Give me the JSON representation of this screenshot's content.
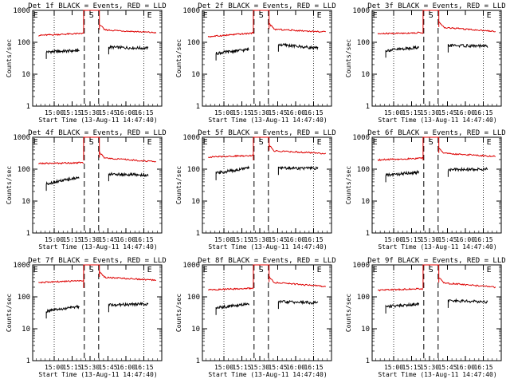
{
  "chart_data": [
    {
      "type": "line",
      "title": "Det 1f BLACK = Events, RED = LLD",
      "ylabel": "Counts/sec",
      "xlabel": "Start Time (13-Aug-11 14:47:40)",
      "xticks": [
        "15:00",
        "15:15",
        "15:30",
        "15:45",
        "16:00",
        "16:15"
      ],
      "yticks": [
        "1",
        "10",
        "100",
        "1000"
      ],
      "ylim": [
        1,
        1000
      ],
      "yscale": "log",
      "markers": [
        "E",
        "S",
        "E"
      ],
      "series": [
        {
          "name": "BLACK = Events",
          "color": "#000000",
          "segments": [
            {
              "x": [
                14.89,
                15.35
              ],
              "y": [
                50,
                55
              ]
            },
            {
              "x": [
                15.76,
                16.31
              ],
              "y": [
                70,
                65
              ]
            }
          ]
        },
        {
          "name": "RED = LLD",
          "color": "#dd0000",
          "segments": [
            {
              "x": [
                14.78,
                15.41
              ],
              "y": [
                165,
                190
              ]
            },
            {
              "x": [
                15.63,
                16.42
              ],
              "y": [
                250,
                200
              ]
            }
          ]
        }
      ]
    },
    {
      "type": "line",
      "title": "Det 2f BLACK = Events, RED = LLD",
      "ylabel": "Counts/sec",
      "xlabel": "Start Time (13-Aug-11 14:47:40)",
      "xticks": [
        "15:00",
        "15:15",
        "15:30",
        "15:45",
        "16:00",
        "16:15"
      ],
      "yticks": [
        "1",
        "10",
        "100",
        "1000"
      ],
      "ylim": [
        1,
        1000
      ],
      "yscale": "log",
      "markers": [
        "E",
        "S",
        "E"
      ],
      "series": [
        {
          "name": "BLACK = Events",
          "color": "#000000",
          "segments": [
            {
              "x": [
                14.89,
                15.35
              ],
              "y": [
                45,
                60
              ]
            },
            {
              "x": [
                15.76,
                16.31
              ],
              "y": [
                85,
                65
              ]
            }
          ]
        },
        {
          "name": "RED = LLD",
          "color": "#dd0000",
          "segments": [
            {
              "x": [
                14.78,
                15.41
              ],
              "y": [
                150,
                195
              ]
            },
            {
              "x": [
                15.63,
                16.42
              ],
              "y": [
                260,
                210
              ]
            }
          ]
        }
      ]
    },
    {
      "type": "line",
      "title": "Det 3f BLACK = Events, RED = LLD",
      "ylabel": "Counts/sec",
      "xlabel": "Start Time (13-Aug-11 14:47:40)",
      "xticks": [
        "15:00",
        "15:15",
        "15:30",
        "15:45",
        "16:00",
        "16:15"
      ],
      "yticks": [
        "1",
        "10",
        "100",
        "1000"
      ],
      "ylim": [
        1,
        1000
      ],
      "yscale": "log",
      "markers": [
        "E",
        "S",
        "E"
      ],
      "series": [
        {
          "name": "BLACK = Events",
          "color": "#000000",
          "segments": [
            {
              "x": [
                14.89,
                15.35
              ],
              "y": [
                55,
                70
              ]
            },
            {
              "x": [
                15.76,
                16.31
              ],
              "y": [
                80,
                75
              ]
            }
          ]
        },
        {
          "name": "RED = LLD",
          "color": "#dd0000",
          "segments": [
            {
              "x": [
                14.78,
                15.41
              ],
              "y": [
                185,
                200
              ]
            },
            {
              "x": [
                15.63,
                16.42
              ],
              "y": [
                300,
                220
              ]
            }
          ]
        }
      ]
    },
    {
      "type": "line",
      "title": "Det 4f BLACK = Events, RED = LLD",
      "ylabel": "Counts/sec",
      "xlabel": "Start Time (13-Aug-11 14:47:40)",
      "xticks": [
        "15:00",
        "15:15",
        "15:30",
        "15:45",
        "16:00",
        "16:15"
      ],
      "yticks": [
        "1",
        "10",
        "100",
        "1000"
      ],
      "ylim": [
        1,
        1000
      ],
      "yscale": "log",
      "markers": [
        "E",
        "S",
        "E"
      ],
      "series": [
        {
          "name": "BLACK = Events",
          "color": "#000000",
          "segments": [
            {
              "x": [
                14.89,
                15.35
              ],
              "y": [
                35,
                55
              ]
            },
            {
              "x": [
                15.76,
                16.31
              ],
              "y": [
                70,
                65
              ]
            }
          ]
        },
        {
          "name": "RED = LLD",
          "color": "#dd0000",
          "segments": [
            {
              "x": [
                14.78,
                15.41
              ],
              "y": [
                150,
                160
              ]
            },
            {
              "x": [
                15.63,
                16.42
              ],
              "y": [
                230,
                170
              ]
            }
          ]
        }
      ]
    },
    {
      "type": "line",
      "title": "Det 5f BLACK = Events, RED = LLD",
      "ylabel": "Counts/sec",
      "xlabel": "Start Time (13-Aug-11 14:47:40)",
      "xticks": [
        "15:00",
        "15:15",
        "15:30",
        "15:45",
        "16:00",
        "16:15"
      ],
      "yticks": [
        "1",
        "10",
        "100",
        "1000"
      ],
      "ylim": [
        1,
        1000
      ],
      "yscale": "log",
      "markers": [
        "E",
        "S",
        "E"
      ],
      "series": [
        {
          "name": "BLACK = Events",
          "color": "#000000",
          "segments": [
            {
              "x": [
                14.89,
                15.35
              ],
              "y": [
                75,
                110
              ]
            },
            {
              "x": [
                15.76,
                16.31
              ],
              "y": [
                110,
                105
              ]
            }
          ]
        },
        {
          "name": "RED = LLD",
          "color": "#dd0000",
          "segments": [
            {
              "x": [
                14.78,
                15.41
              ],
              "y": [
                240,
                270
              ]
            },
            {
              "x": [
                15.63,
                16.42
              ],
              "y": [
                380,
                310
              ]
            }
          ]
        }
      ]
    },
    {
      "type": "line",
      "title": "Det 6f BLACK = Events, RED = LLD",
      "ylabel": "Counts/sec",
      "xlabel": "Start Time (13-Aug-11 14:47:40)",
      "xticks": [
        "15:00",
        "15:15",
        "15:30",
        "15:45",
        "16:00",
        "16:15"
      ],
      "yticks": [
        "1",
        "10",
        "100",
        "1000"
      ],
      "ylim": [
        1,
        1000
      ],
      "yscale": "log",
      "markers": [
        "E",
        "S",
        "E"
      ],
      "series": [
        {
          "name": "BLACK = Events",
          "color": "#000000",
          "segments": [
            {
              "x": [
                14.89,
                15.35
              ],
              "y": [
                65,
                80
              ]
            },
            {
              "x": [
                15.76,
                16.31
              ],
              "y": [
                95,
                100
              ]
            }
          ]
        },
        {
          "name": "RED = LLD",
          "color": "#dd0000",
          "segments": [
            {
              "x": [
                14.78,
                15.41
              ],
              "y": [
                195,
                220
              ]
            },
            {
              "x": [
                15.63,
                16.42
              ],
              "y": [
                320,
                250
              ]
            }
          ]
        }
      ]
    },
    {
      "type": "line",
      "title": "Det 7f BLACK = Events, RED = LLD",
      "ylabel": "Counts/sec",
      "xlabel": "Start Time (13-Aug-11 14:47:40)",
      "xticks": [
        "15:00",
        "15:15",
        "15:30",
        "15:45",
        "16:00",
        "16:15"
      ],
      "yticks": [
        "1",
        "10",
        "100",
        "1000"
      ],
      "ylim": [
        1,
        1000
      ],
      "yscale": "log",
      "markers": [
        "E",
        "S",
        "E"
      ],
      "series": [
        {
          "name": "BLACK = Events",
          "color": "#000000",
          "segments": [
            {
              "x": [
                14.89,
                15.35
              ],
              "y": [
                35,
                50
              ]
            },
            {
              "x": [
                15.76,
                16.31
              ],
              "y": [
                55,
                60
              ]
            }
          ]
        },
        {
          "name": "RED = LLD",
          "color": "#dd0000",
          "segments": [
            {
              "x": [
                14.78,
                15.41
              ],
              "y": [
                280,
                320
              ]
            },
            {
              "x": [
                15.63,
                16.42
              ],
              "y": [
                420,
                330
              ]
            }
          ]
        }
      ]
    },
    {
      "type": "line",
      "title": "Det 8f BLACK = Events, RED = LLD",
      "ylabel": "Counts/sec",
      "xlabel": "Start Time (13-Aug-11 14:47:40)",
      "xticks": [
        "15:00",
        "15:15",
        "15:30",
        "15:45",
        "16:00",
        "16:15"
      ],
      "yticks": [
        "1",
        "10",
        "100",
        "1000"
      ],
      "ylim": [
        1,
        1000
      ],
      "yscale": "log",
      "markers": [
        "E",
        "S",
        "E"
      ],
      "series": [
        {
          "name": "BLACK = Events",
          "color": "#000000",
          "segments": [
            {
              "x": [
                14.89,
                15.35
              ],
              "y": [
                45,
                60
              ]
            },
            {
              "x": [
                15.76,
                16.31
              ],
              "y": [
                70,
                65
              ]
            }
          ]
        },
        {
          "name": "RED = LLD",
          "color": "#dd0000",
          "segments": [
            {
              "x": [
                14.78,
                15.41
              ],
              "y": [
                165,
                185
              ]
            },
            {
              "x": [
                15.63,
                16.42
              ],
              "y": [
                290,
                210
              ]
            }
          ]
        }
      ]
    },
    {
      "type": "line",
      "title": "Det 9f BLACK = Events, RED = LLD",
      "ylabel": "Counts/sec",
      "xlabel": "Start Time (13-Aug-11 14:47:40)",
      "xticks": [
        "15:00",
        "15:15",
        "15:30",
        "15:45",
        "16:00",
        "16:15"
      ],
      "yticks": [
        "1",
        "10",
        "100",
        "1000"
      ],
      "ylim": [
        1,
        1000
      ],
      "yscale": "log",
      "markers": [
        "E",
        "S",
        "E"
      ],
      "series": [
        {
          "name": "BLACK = Events",
          "color": "#000000",
          "segments": [
            {
              "x": [
                14.89,
                15.35
              ],
              "y": [
                50,
                60
              ]
            },
            {
              "x": [
                15.76,
                16.31
              ],
              "y": [
                75,
                70
              ]
            }
          ]
        },
        {
          "name": "RED = LLD",
          "color": "#dd0000",
          "segments": [
            {
              "x": [
                14.78,
                15.41
              ],
              "y": [
                160,
                180
              ]
            },
            {
              "x": [
                15.63,
                16.42
              ],
              "y": [
                280,
                200
              ]
            }
          ]
        }
      ]
    }
  ]
}
